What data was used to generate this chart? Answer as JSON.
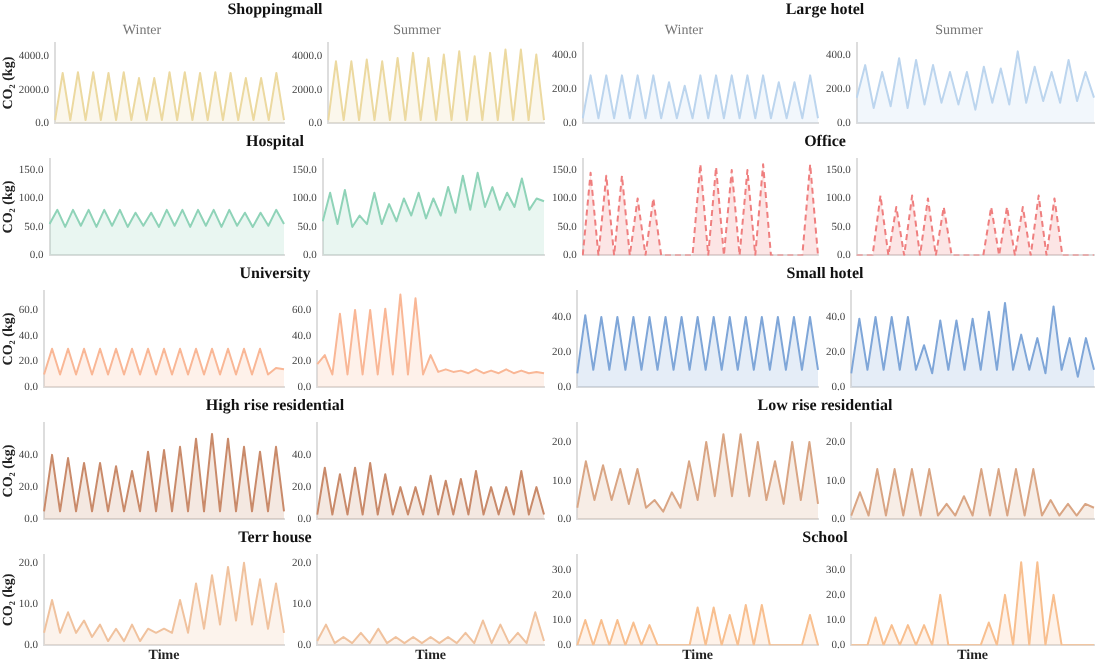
{
  "chart_data": [
    {
      "type": "area",
      "title": "Shoppingmall",
      "subtitle": "Winter",
      "ylabel": "CO₂ (kg)",
      "color": "#ecd9a0",
      "categories": [
        null,
        null,
        null,
        null,
        null,
        null,
        null,
        null,
        null,
        null,
        null,
        null,
        null,
        null,
        null,
        null,
        null,
        null,
        null,
        null,
        null,
        null,
        null,
        null,
        null,
        null,
        null,
        null,
        null,
        null,
        null
      ],
      "values": [
        200,
        3000,
        200,
        3050,
        200,
        3050,
        200,
        3000,
        200,
        3050,
        200,
        2700,
        200,
        2700,
        200,
        3050,
        200,
        3050,
        200,
        3000,
        200,
        3050,
        200,
        3000,
        200,
        2700,
        200,
        2700,
        200,
        3000,
        200
      ],
      "ylim": [
        0,
        4800
      ],
      "yticks": [
        {
          "value": 0,
          "label": "0.0"
        },
        {
          "value": 2000,
          "label": "2000.0"
        },
        {
          "value": 4000,
          "label": "4000.0"
        }
      ],
      "tick_labels": "y"
    },
    {
      "type": "area",
      "subtitle": "Summer",
      "color": "#ecd9a0",
      "categories": [
        null,
        null,
        null,
        null,
        null,
        null,
        null,
        null,
        null,
        null,
        null,
        null,
        null,
        null,
        null,
        null,
        null,
        null,
        null,
        null,
        null,
        null,
        null,
        null,
        null,
        null,
        null,
        null,
        null
      ],
      "values": [
        200,
        3700,
        200,
        3700,
        200,
        3800,
        200,
        3700,
        200,
        3900,
        200,
        4200,
        200,
        3900,
        200,
        4100,
        200,
        4300,
        200,
        4000,
        200,
        4200,
        200,
        4400,
        200,
        4400,
        200,
        4100,
        200
      ],
      "ylim": [
        0,
        4800
      ],
      "yticks": [
        {
          "value": 0,
          "label": "0.0"
        },
        {
          "value": 2000,
          "label": "2000.0"
        },
        {
          "value": 4000,
          "label": "4000.0"
        }
      ],
      "tick_labels": "y"
    },
    {
      "type": "area",
      "title": "Large hotel",
      "subtitle": "Winter",
      "color": "#bcd5ee",
      "categories": [
        null,
        null,
        null,
        null,
        null,
        null,
        null,
        null,
        null,
        null,
        null,
        null,
        null,
        null,
        null,
        null,
        null,
        null,
        null,
        null,
        null,
        null,
        null,
        null,
        null,
        null,
        null,
        null,
        null,
        null,
        null
      ],
      "values": [
        30,
        280,
        30,
        280,
        30,
        280,
        30,
        280,
        30,
        280,
        30,
        240,
        30,
        220,
        30,
        280,
        30,
        280,
        30,
        280,
        30,
        280,
        30,
        280,
        30,
        240,
        30,
        240,
        30,
        280,
        30
      ],
      "ylim": [
        0,
        470
      ],
      "yticks": [
        {
          "value": 0,
          "label": "0.0"
        },
        {
          "value": 200,
          "label": "200.0"
        },
        {
          "value": 400,
          "label": "400.0"
        }
      ],
      "tick_labels": "y"
    },
    {
      "type": "area",
      "subtitle": "Summer",
      "color": "#bcd5ee",
      "categories": [
        null,
        null,
        null,
        null,
        null,
        null,
        null,
        null,
        null,
        null,
        null,
        null,
        null,
        null,
        null,
        null,
        null,
        null,
        null,
        null,
        null,
        null,
        null,
        null,
        null,
        null,
        null,
        null,
        null
      ],
      "values": [
        150,
        340,
        90,
        300,
        100,
        380,
        90,
        370,
        110,
        340,
        120,
        300,
        110,
        300,
        80,
        330,
        120,
        320,
        110,
        420,
        120,
        330,
        130,
        300,
        120,
        370,
        130,
        300,
        150
      ],
      "ylim": [
        0,
        470
      ],
      "yticks": [
        {
          "value": 0,
          "label": "0.0"
        },
        {
          "value": 200,
          "label": "200.0"
        },
        {
          "value": 400,
          "label": "400.0"
        }
      ],
      "tick_labels": "y"
    },
    {
      "type": "area",
      "title": "Hospital",
      "ylabel": "CO₂ (kg)",
      "color": "#8fd3b8",
      "categories": [
        null,
        null,
        null,
        null,
        null,
        null,
        null,
        null,
        null,
        null,
        null,
        null,
        null,
        null,
        null,
        null,
        null,
        null,
        null,
        null,
        null,
        null,
        null,
        null,
        null,
        null,
        null,
        null,
        null,
        null,
        null
      ],
      "values": [
        55,
        80,
        50,
        80,
        52,
        80,
        50,
        80,
        52,
        80,
        50,
        75,
        52,
        75,
        50,
        80,
        52,
        80,
        50,
        80,
        52,
        80,
        50,
        80,
        52,
        75,
        50,
        75,
        52,
        80,
        55
      ],
      "ylim": [
        0,
        170
      ],
      "yticks": [
        {
          "value": 0,
          "label": "0.0"
        },
        {
          "value": 50,
          "label": "50.0"
        },
        {
          "value": 100,
          "label": "100.0"
        },
        {
          "value": 150,
          "label": "150.0"
        }
      ],
      "tick_labels": "y"
    },
    {
      "type": "area",
      "color": "#8fd3b8",
      "categories": [
        null,
        null,
        null,
        null,
        null,
        null,
        null,
        null,
        null,
        null,
        null,
        null,
        null,
        null,
        null,
        null,
        null,
        null,
        null,
        null,
        null,
        null,
        null,
        null,
        null,
        null,
        null,
        null,
        null,
        null,
        null
      ],
      "values": [
        60,
        110,
        55,
        115,
        50,
        70,
        55,
        110,
        55,
        90,
        60,
        100,
        70,
        110,
        65,
        100,
        70,
        120,
        75,
        140,
        80,
        145,
        85,
        120,
        80,
        110,
        85,
        135,
        80,
        100,
        95
      ],
      "ylim": [
        0,
        170
      ],
      "yticks": [
        {
          "value": 0,
          "label": "0.0"
        },
        {
          "value": 50,
          "label": "50.0"
        },
        {
          "value": 100,
          "label": "100.0"
        },
        {
          "value": 150,
          "label": "150.0"
        }
      ],
      "tick_labels": "y"
    },
    {
      "type": "area",
      "title": "Office",
      "color": "#ef7f7f",
      "line_style": "dashed",
      "categories": [
        null,
        null,
        null,
        null,
        null,
        null,
        null,
        null,
        null,
        null,
        null,
        null,
        null,
        null,
        null,
        null,
        null,
        null,
        null,
        null,
        null,
        null,
        null,
        null,
        null,
        null,
        null,
        null,
        null,
        null,
        null
      ],
      "values": [
        0,
        145,
        0,
        140,
        0,
        140,
        0,
        100,
        0,
        100,
        0,
        0,
        0,
        0,
        0,
        160,
        0,
        155,
        0,
        150,
        0,
        150,
        0,
        160,
        0,
        0,
        0,
        0,
        0,
        160,
        0
      ],
      "ylim": [
        0,
        170
      ],
      "yticks": [
        {
          "value": 0,
          "label": "0.0"
        },
        {
          "value": 50,
          "label": "50.0"
        },
        {
          "value": 100,
          "label": "100.0"
        },
        {
          "value": 150,
          "label": "150.0"
        }
      ],
      "tick_labels": "y"
    },
    {
      "type": "area",
      "color": "#ef7f7f",
      "line_style": "dashed",
      "categories": [
        null,
        null,
        null,
        null,
        null,
        null,
        null,
        null,
        null,
        null,
        null,
        null,
        null,
        null,
        null,
        null,
        null,
        null,
        null,
        null,
        null,
        null,
        null,
        null,
        null,
        null,
        null,
        null,
        null,
        null,
        null
      ],
      "values": [
        0,
        0,
        0,
        105,
        0,
        85,
        0,
        105,
        0,
        100,
        0,
        85,
        0,
        0,
        0,
        0,
        0,
        85,
        0,
        85,
        0,
        85,
        0,
        105,
        0,
        100,
        0,
        0,
        0,
        0,
        0
      ],
      "ylim": [
        0,
        170
      ],
      "yticks": [
        {
          "value": 0,
          "label": "0.0"
        },
        {
          "value": 50,
          "label": "50.0"
        },
        {
          "value": 100,
          "label": "100.0"
        },
        {
          "value": 150,
          "label": "150.0"
        }
      ],
      "tick_labels": "y"
    },
    {
      "type": "area",
      "title": "University",
      "ylabel": "CO₂ (kg)",
      "color": "#f9b796",
      "categories": [
        null,
        null,
        null,
        null,
        null,
        null,
        null,
        null,
        null,
        null,
        null,
        null,
        null,
        null,
        null,
        null,
        null,
        null,
        null,
        null,
        null,
        null,
        null,
        null,
        null,
        null,
        null,
        null,
        null,
        null,
        null
      ],
      "values": [
        10,
        30,
        10,
        30,
        10,
        30,
        10,
        30,
        10,
        30,
        10,
        30,
        10,
        30,
        10,
        30,
        10,
        30,
        10,
        30,
        10,
        30,
        10,
        30,
        10,
        30,
        10,
        30,
        10,
        15,
        14
      ],
      "ylim": [
        0,
        75
      ],
      "yticks": [
        {
          "value": 0,
          "label": "0.0"
        },
        {
          "value": 20,
          "label": "20.0"
        },
        {
          "value": 40,
          "label": "40.0"
        },
        {
          "value": 60,
          "label": "60.0"
        }
      ],
      "tick_labels": "y"
    },
    {
      "type": "area",
      "color": "#f9b796",
      "categories": [
        null,
        null,
        null,
        null,
        null,
        null,
        null,
        null,
        null,
        null,
        null,
        null,
        null,
        null,
        null,
        null,
        null,
        null,
        null,
        null,
        null,
        null,
        null,
        null,
        null,
        null,
        null,
        null,
        null,
        null,
        null
      ],
      "values": [
        18,
        25,
        10,
        57,
        10,
        60,
        10,
        60,
        10,
        61,
        10,
        72,
        10,
        69,
        10,
        25,
        12,
        14,
        12,
        13,
        11,
        14,
        11,
        13,
        11,
        14,
        11,
        13,
        11,
        12,
        11
      ],
      "ylim": [
        0,
        75
      ],
      "yticks": [
        {
          "value": 0,
          "label": "0.0"
        },
        {
          "value": 20,
          "label": "20.0"
        },
        {
          "value": 40,
          "label": "40.0"
        },
        {
          "value": 60,
          "label": "60.0"
        }
      ],
      "tick_labels": "y"
    },
    {
      "type": "area",
      "title": "Small hotel",
      "color": "#7fa6d8",
      "categories": [
        null,
        null,
        null,
        null,
        null,
        null,
        null,
        null,
        null,
        null,
        null,
        null,
        null,
        null,
        null,
        null,
        null,
        null,
        null,
        null,
        null,
        null,
        null,
        null,
        null,
        null,
        null,
        null,
        null,
        null,
        null
      ],
      "values": [
        8,
        41,
        10,
        40,
        10,
        40,
        10,
        40,
        10,
        40,
        10,
        40,
        10,
        40,
        10,
        40,
        10,
        40,
        10,
        40,
        10,
        40,
        10,
        40,
        10,
        40,
        10,
        40,
        10,
        40,
        10
      ],
      "ylim": [
        0,
        55
      ],
      "yticks": [
        {
          "value": 0,
          "label": "0.0"
        },
        {
          "value": 20,
          "label": "20.0"
        },
        {
          "value": 40,
          "label": "40.0"
        }
      ],
      "tick_labels": "y"
    },
    {
      "type": "area",
      "color": "#7fa6d8",
      "categories": [
        null,
        null,
        null,
        null,
        null,
        null,
        null,
        null,
        null,
        null,
        null,
        null,
        null,
        null,
        null,
        null,
        null,
        null,
        null,
        null,
        null,
        null,
        null,
        null,
        null,
        null,
        null,
        null,
        null,
        null,
        null
      ],
      "values": [
        8,
        39,
        10,
        40,
        10,
        40,
        10,
        40,
        10,
        24,
        8,
        38,
        10,
        38,
        10,
        39,
        10,
        43,
        10,
        48,
        10,
        30,
        10,
        28,
        8,
        46,
        10,
        28,
        6,
        28,
        10
      ],
      "ylim": [
        0,
        55
      ],
      "yticks": [
        {
          "value": 0,
          "label": "0.0"
        },
        {
          "value": 20,
          "label": "20.0"
        },
        {
          "value": 40,
          "label": "40.0"
        }
      ],
      "tick_labels": "y"
    },
    {
      "type": "area",
      "title": "High rise residential",
      "ylabel": "CO₂ (kg)",
      "color": "#c98a6a",
      "categories": [
        null,
        null,
        null,
        null,
        null,
        null,
        null,
        null,
        null,
        null,
        null,
        null,
        null,
        null,
        null,
        null,
        null,
        null,
        null,
        null,
        null,
        null,
        null,
        null,
        null,
        null,
        null,
        null,
        null,
        null,
        null
      ],
      "values": [
        5,
        40,
        5,
        38,
        5,
        35,
        5,
        35,
        5,
        33,
        5,
        30,
        5,
        42,
        5,
        43,
        5,
        45,
        5,
        50,
        5,
        53,
        5,
        50,
        5,
        45,
        5,
        42,
        5,
        45,
        5
      ],
      "ylim": [
        0,
        60
      ],
      "yticks": [
        {
          "value": 0,
          "label": "0.0"
        },
        {
          "value": 20,
          "label": "20.0"
        },
        {
          "value": 40,
          "label": "40.0"
        }
      ],
      "tick_labels": "y"
    },
    {
      "type": "area",
      "color": "#c98a6a",
      "categories": [
        null,
        null,
        null,
        null,
        null,
        null,
        null,
        null,
        null,
        null,
        null,
        null,
        null,
        null,
        null,
        null,
        null,
        null,
        null,
        null,
        null,
        null,
        null,
        null,
        null,
        null,
        null,
        null,
        null,
        null,
        null
      ],
      "values": [
        3,
        32,
        3,
        28,
        3,
        32,
        3,
        35,
        3,
        28,
        3,
        20,
        3,
        20,
        3,
        27,
        3,
        24,
        3,
        25,
        3,
        30,
        3,
        20,
        3,
        20,
        3,
        30,
        3,
        20,
        3
      ],
      "ylim": [
        0,
        60
      ],
      "yticks": [
        {
          "value": 0,
          "label": "0.0"
        },
        {
          "value": 20,
          "label": "20.0"
        },
        {
          "value": 40,
          "label": "40.0"
        }
      ],
      "tick_labels": "y"
    },
    {
      "type": "area",
      "title": "Low rise residential",
      "color": "#d9a584",
      "categories": [
        null,
        null,
        null,
        null,
        null,
        null,
        null,
        null,
        null,
        null,
        null,
        null,
        null,
        null,
        null,
        null,
        null,
        null,
        null,
        null,
        null,
        null,
        null,
        null,
        null,
        null,
        null,
        null,
        null
      ],
      "values": [
        3,
        15,
        5,
        14,
        5,
        13,
        4,
        13,
        3,
        5,
        2,
        7,
        3,
        15,
        5,
        20,
        6,
        22,
        6,
        22,
        6,
        20,
        5,
        15,
        4,
        20,
        5,
        20,
        4
      ],
      "ylim": [
        0,
        25
      ],
      "yticks": [
        {
          "value": 0,
          "label": "0.0"
        },
        {
          "value": 10,
          "label": "10.0"
        },
        {
          "value": 20,
          "label": "20.0"
        }
      ],
      "tick_labels": "y"
    },
    {
      "type": "area",
      "color": "#d9a584",
      "categories": [
        null,
        null,
        null,
        null,
        null,
        null,
        null,
        null,
        null,
        null,
        null,
        null,
        null,
        null,
        null,
        null,
        null,
        null,
        null,
        null,
        null,
        null,
        null,
        null,
        null,
        null,
        null,
        null,
        null
      ],
      "values": [
        1,
        7,
        1,
        13,
        1,
        13,
        1,
        13,
        1,
        13,
        1,
        4,
        1,
        6,
        1,
        13,
        1,
        13,
        1,
        13,
        1,
        13,
        1,
        5,
        1,
        4,
        1,
        4,
        3
      ],
      "ylim": [
        0,
        25
      ],
      "yticks": [
        {
          "value": 0,
          "label": "0.0"
        },
        {
          "value": 10,
          "label": "10.0"
        },
        {
          "value": 20,
          "label": "20.0"
        }
      ],
      "tick_labels": "y"
    },
    {
      "type": "area",
      "title": "Terr house",
      "ylabel": "CO₂ (kg)",
      "xlabel": "Time",
      "color": "#f0c29e",
      "categories": [
        null,
        null,
        null,
        null,
        null,
        null,
        null,
        null,
        null,
        null,
        null,
        null,
        null,
        null,
        null,
        null,
        null,
        null,
        null,
        null,
        null,
        null,
        null,
        null,
        null,
        null,
        null,
        null,
        null,
        null,
        null
      ],
      "values": [
        3,
        11,
        3,
        8,
        3,
        6,
        2,
        5,
        1,
        4,
        1,
        5,
        1,
        4,
        3,
        4,
        3,
        11,
        3,
        15,
        4,
        17,
        5,
        19,
        6,
        20,
        5,
        16,
        4,
        15,
        3
      ],
      "ylim": [
        0,
        22
      ],
      "yticks": [
        {
          "value": 0,
          "label": "0.0"
        },
        {
          "value": 10,
          "label": "10.0"
        },
        {
          "value": 20,
          "label": "20.0"
        }
      ],
      "tick_labels": "y"
    },
    {
      "type": "area",
      "xlabel": "Time",
      "color": "#f0c29e",
      "categories": [
        null,
        null,
        null,
        null,
        null,
        null,
        null,
        null,
        null,
        null,
        null,
        null,
        null,
        null,
        null,
        null,
        null,
        null,
        null,
        null,
        null,
        null,
        null,
        null,
        null,
        null,
        null
      ],
      "values": [
        1,
        5,
        0.5,
        2,
        0.5,
        3,
        0.5,
        4,
        0.5,
        2,
        0.5,
        2,
        0.5,
        2,
        0.5,
        2,
        0.5,
        3,
        0.5,
        6,
        0.5,
        5,
        0.5,
        3,
        0.5,
        8,
        1
      ],
      "ylim": [
        0,
        22
      ],
      "yticks": [
        {
          "value": 0,
          "label": "0.0"
        },
        {
          "value": 10,
          "label": "10.0"
        },
        {
          "value": 20,
          "label": "20.0"
        }
      ],
      "tick_labels": "y"
    },
    {
      "type": "area",
      "title": "School",
      "xlabel": "Time",
      "color": "#f8bf8f",
      "categories": [
        null,
        null,
        null,
        null,
        null,
        null,
        null,
        null,
        null,
        null,
        null,
        null,
        null,
        null,
        null,
        null,
        null,
        null,
        null,
        null,
        null,
        null,
        null,
        null,
        null,
        null,
        null,
        null,
        null,
        null,
        null
      ],
      "values": [
        0,
        10,
        0,
        10,
        0,
        10,
        0,
        9,
        0,
        8,
        0,
        0,
        0,
        0,
        0,
        15,
        0,
        15,
        0,
        12,
        0,
        16,
        0,
        16,
        0,
        0,
        0,
        0,
        0,
        12,
        0
      ],
      "ylim": [
        0,
        36
      ],
      "yticks": [
        {
          "value": 0,
          "label": "0.0"
        },
        {
          "value": 10,
          "label": "10.0"
        },
        {
          "value": 20,
          "label": "20.0"
        },
        {
          "value": 30,
          "label": "30.0"
        }
      ],
      "tick_labels": "y"
    },
    {
      "type": "area",
      "xlabel": "Time",
      "color": "#f8bf8f",
      "categories": [
        null,
        null,
        null,
        null,
        null,
        null,
        null,
        null,
        null,
        null,
        null,
        null,
        null,
        null,
        null,
        null,
        null,
        null,
        null,
        null,
        null,
        null,
        null,
        null,
        null,
        null,
        null,
        null,
        null,
        null,
        null
      ],
      "values": [
        0,
        0,
        0,
        11,
        0,
        8,
        0,
        8,
        0,
        8,
        0,
        20,
        0,
        0,
        0,
        0,
        0,
        9,
        0,
        20,
        0,
        33,
        0,
        33,
        0,
        20,
        0,
        0,
        0,
        0,
        0
      ],
      "ylim": [
        0,
        36
      ],
      "yticks": [
        {
          "value": 0,
          "label": "0.0"
        },
        {
          "value": 10,
          "label": "10.0"
        },
        {
          "value": 20,
          "label": "20.0"
        },
        {
          "value": 30,
          "label": "30.0"
        }
      ],
      "tick_labels": "y"
    }
  ]
}
